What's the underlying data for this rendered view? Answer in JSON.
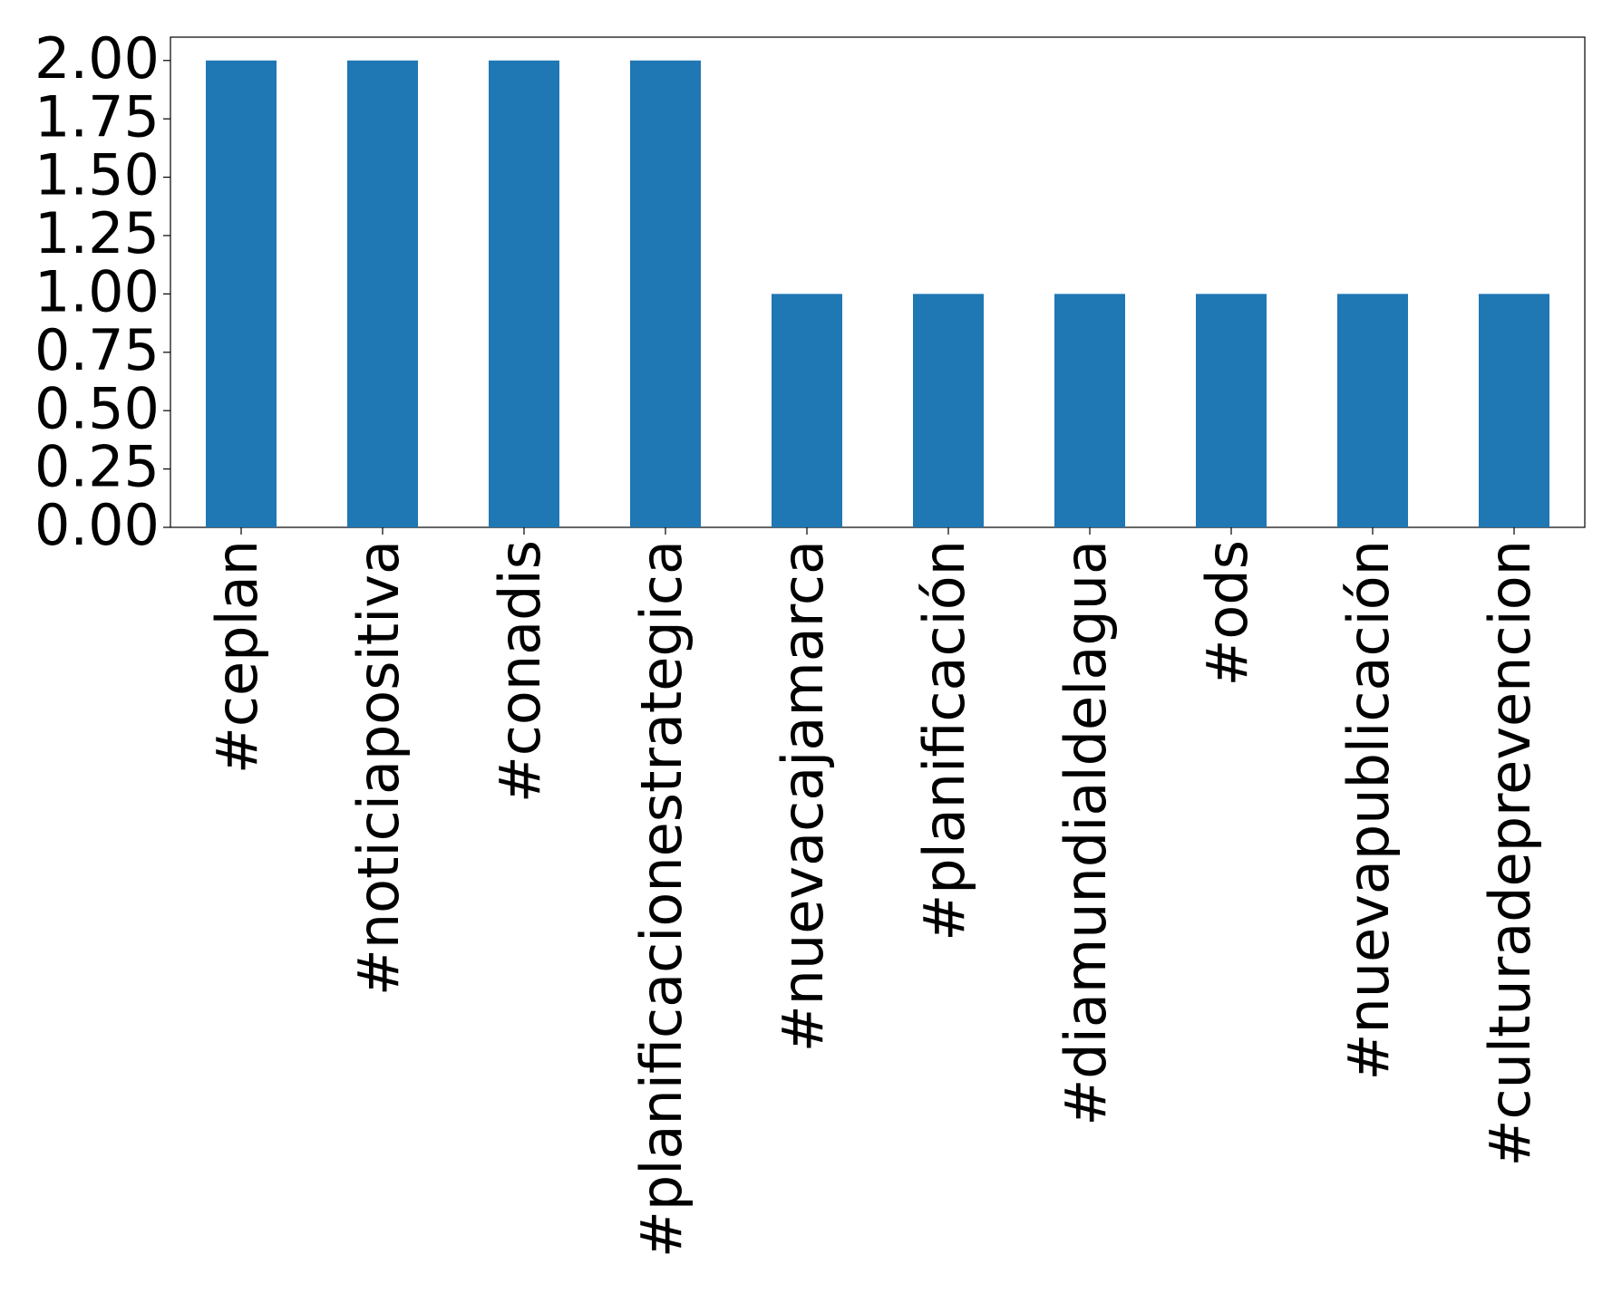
{
  "chart_data": {
    "type": "bar",
    "categories": [
      "#ceplan",
      "#noticiapositiva",
      "#conadis",
      "#planificacionestrategica",
      "#nuevacajamarca",
      "#planificación",
      "#diamundialdelagua",
      "#ods",
      "#nuevapublicación",
      "#culturadeprevencion"
    ],
    "values": [
      2,
      2,
      2,
      2,
      1,
      1,
      1,
      1,
      1,
      1
    ],
    "color": "#1f77b4",
    "ylim": [
      0,
      2.1
    ],
    "yticks": [
      {
        "value": 0,
        "label": "0.00"
      },
      {
        "value": 0.25,
        "label": "0.25"
      },
      {
        "value": 0.5,
        "label": "0.50"
      },
      {
        "value": 0.75,
        "label": "0.75"
      },
      {
        "value": 1,
        "label": "1.00"
      },
      {
        "value": 1.25,
        "label": "1.25"
      },
      {
        "value": 1.5,
        "label": "1.50"
      },
      {
        "value": 1.75,
        "label": "1.75"
      },
      {
        "value": 2,
        "label": "2.00"
      }
    ],
    "grid": false
  }
}
